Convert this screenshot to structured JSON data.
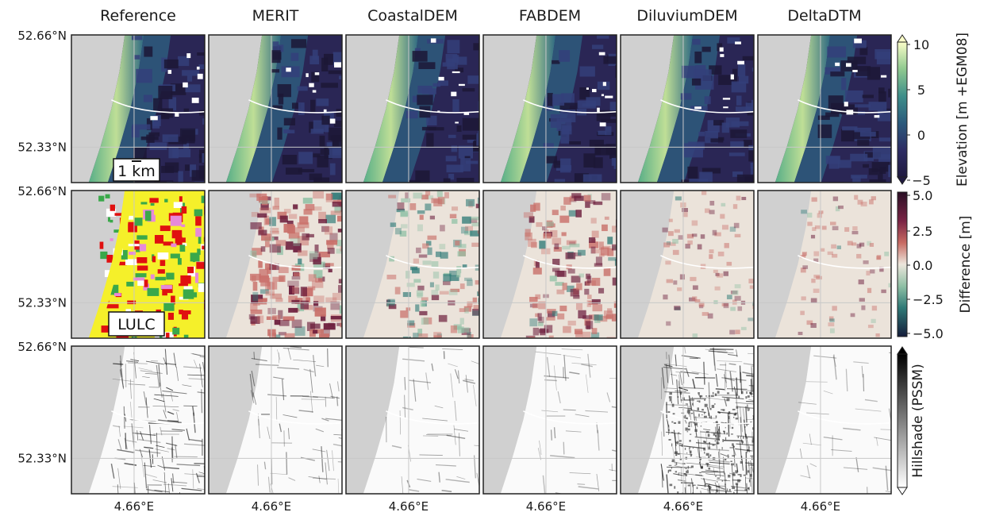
{
  "figure": {
    "columns": [
      "Reference",
      "MERIT",
      "CoastalDEM",
      "FABDEM",
      "DiluviumDEM",
      "DeltaDTM"
    ],
    "y_ticks": [
      "52.66°N",
      "52.33°N"
    ],
    "x_tick": "4.66°E",
    "scale_bar_label": "1 km",
    "lulc_label": "LULC",
    "colorbars": [
      {
        "label": "Elevation [m +EGM08]",
        "ticks": [
          "10",
          "5",
          "0",
          "−5"
        ],
        "colormap": "viridis-like (dark navy to pale yellow)",
        "extend": "both"
      },
      {
        "label": "Difference [m]",
        "ticks": [
          "5.0",
          "2.5",
          "0.0",
          "−2.5",
          "−5.0"
        ],
        "colormap": "diverging (dark purple / red / beige / teal / dark navy)"
      },
      {
        "label": "Hillshade (PSSM)",
        "ticks": [],
        "colormap": "grayscale (black to white)",
        "extend": "both"
      }
    ],
    "colors": {
      "land_gray": "#d0d0d0",
      "elevation_low": "#241f4a",
      "elevation_high": "#fafdc8",
      "diff_pos": "#3b0f2b",
      "diff_neg": "#15324a",
      "lulc_yellow": "#f5f02a",
      "lulc_red": "#e01010",
      "lulc_green": "#3aa84a",
      "lulc_pink": "#e68ad8"
    }
  }
}
